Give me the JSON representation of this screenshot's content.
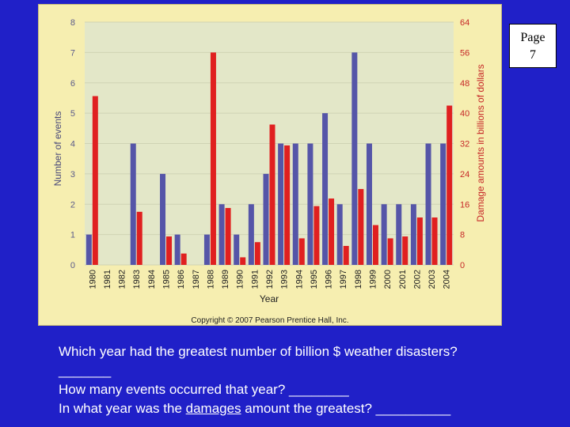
{
  "page": {
    "label": "Page",
    "number": "7"
  },
  "copyright": "Copyright © 2007 Pearson Prentice Hall, Inc.",
  "questions": {
    "q1_text": "Which year had the greatest number of billion $ weather disasters?",
    "q1_blank": "_______",
    "q2_text": "How many events occurred that year? ",
    "q2_blank": "________",
    "q3_before": "In what year was the ",
    "q3_emphasis": "damages",
    "q3_after": " amount the greatest? __________"
  },
  "colors": {
    "events": "#5555a8",
    "damage": "#e02020",
    "plot_bg": "#e3e7c8",
    "figure_bg": "#f6eeb0",
    "page_bg": "#2020c8"
  },
  "chart_data": {
    "type": "bar",
    "xlabel": "Year",
    "ylabel_left": "Number of events",
    "ylabel_right": "Damage amounts in billions of dollars",
    "ylim_left": [
      0,
      8
    ],
    "ylim_right": [
      0,
      64
    ],
    "left_ticks": [
      0,
      1,
      2,
      3,
      4,
      5,
      6,
      7,
      8
    ],
    "right_ticks": [
      0,
      8,
      16,
      24,
      32,
      40,
      48,
      56,
      64
    ],
    "categories": [
      "1980",
      "1981",
      "1982",
      "1983",
      "1984",
      "1985",
      "1986",
      "1987",
      "1988",
      "1989",
      "1990",
      "1991",
      "1992",
      "1993",
      "1994",
      "1995",
      "1996",
      "1997",
      "1998",
      "1999",
      "2000",
      "2001",
      "2002",
      "2003",
      "2004"
    ],
    "series": [
      {
        "name": "Number of events",
        "axis": "left",
        "values": [
          1,
          0,
          0,
          4,
          0,
          3,
          1,
          0,
          1,
          2,
          1,
          2,
          3,
          4,
          4,
          4,
          5,
          2,
          7,
          4,
          2,
          2,
          2,
          4,
          4
        ]
      },
      {
        "name": "Damage amounts in billions of dollars",
        "axis": "right",
        "values": [
          44.5,
          0,
          0,
          14,
          0,
          7.5,
          3,
          0,
          56,
          15,
          2,
          6,
          37,
          31.5,
          7,
          15.5,
          17.5,
          5,
          20,
          10.5,
          7,
          7.5,
          12.5,
          12.5,
          42
        ]
      }
    ]
  }
}
